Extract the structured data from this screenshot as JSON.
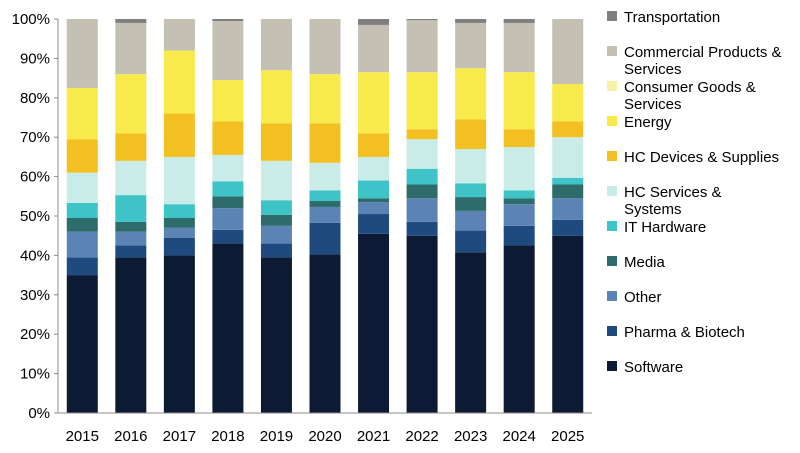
{
  "chart_data": {
    "type": "bar",
    "stacked": true,
    "normalized": true,
    "title": "",
    "xlabel": "",
    "ylabel": "",
    "ylim": [
      0,
      100
    ],
    "yticks": [
      "0%",
      "10%",
      "20%",
      "30%",
      "40%",
      "50%",
      "60%",
      "70%",
      "80%",
      "90%",
      "100%"
    ],
    "categories": [
      "2015",
      "2016",
      "2017",
      "2018",
      "2019",
      "2020",
      "2021",
      "2022",
      "2023",
      "2024",
      "2025"
    ],
    "series": [
      {
        "name": "Software",
        "color": "#0c1a33",
        "values": [
          35,
          39.5,
          40,
          43,
          39.5,
          40.3,
          45.5,
          45,
          40.8,
          42.5,
          45
        ]
      },
      {
        "name": "Pharma & Biotech",
        "color": "#1e4a80",
        "values": [
          4.5,
          3,
          4.5,
          3.5,
          3.5,
          8,
          5,
          3.5,
          5.5,
          5,
          4
        ]
      },
      {
        "name": "Other",
        "color": "#5b84b4",
        "values": [
          6.5,
          3.5,
          2.5,
          5.5,
          4.5,
          4,
          3,
          6,
          5,
          5.5,
          5.5
        ]
      },
      {
        "name": "Media",
        "color": "#2e6b6b",
        "values": [
          3.5,
          2.5,
          2.5,
          3,
          2.8,
          1.5,
          1,
          3.5,
          3.5,
          1.5,
          3.5
        ]
      },
      {
        "name": "IT Hardware",
        "color": "#3ec3c6",
        "values": [
          3.8,
          6.8,
          3.5,
          3.8,
          3.7,
          2.7,
          4.5,
          4,
          3.5,
          2,
          1.7
        ]
      },
      {
        "name": "HC Services & Systems",
        "color": "#c9ece9",
        "values": [
          7.7,
          8.7,
          12,
          6.7,
          10,
          7,
          6,
          7.5,
          8.7,
          11,
          10.3
        ]
      },
      {
        "name": "HC Devices & Supplies",
        "color": "#f3c021",
        "values": [
          8.5,
          7,
          11,
          8.5,
          9.5,
          10,
          6,
          2.5,
          7.5,
          4.5,
          4
        ]
      },
      {
        "name": "Energy",
        "color": "#f8ea4b",
        "values": [
          13,
          15,
          16,
          10.5,
          13.5,
          12.5,
          15.5,
          14.5,
          13,
          14.5,
          9.5
        ]
      },
      {
        "name": "Consumer Goods & Services",
        "color": "#f6f1a8",
        "values": [
          0,
          0,
          0,
          0,
          0,
          0,
          0,
          0,
          0,
          0,
          0
        ]
      },
      {
        "name": "Commercial Products & Services",
        "color": "#c4c0b4",
        "values": [
          17.5,
          13,
          8,
          15,
          13,
          14,
          12,
          13.2,
          11.5,
          12.5,
          16.5
        ]
      },
      {
        "name": "Transportation",
        "color": "#7f7f7f",
        "values": [
          0,
          1,
          0,
          0.5,
          0,
          0,
          1.5,
          0.3,
          1,
          1,
          0
        ]
      }
    ],
    "legend": {
      "position": "right",
      "order": [
        "Transportation",
        "Commercial Products & Services",
        "Consumer Goods & Services",
        "Energy",
        "HC Devices & Supplies",
        "HC Services & Systems",
        "IT Hardware",
        "Media",
        "Other",
        "Pharma & Biotech",
        "Software"
      ],
      "lines": {
        "Transportation": [
          "Transportation"
        ],
        "Commercial Products & Services": [
          "Commercial Products &",
          "Services"
        ],
        "Consumer Goods & Services": [
          "Consumer Goods &",
          "Services"
        ],
        "Energy": [
          "Energy"
        ],
        "HC Devices & Supplies": [
          "HC Devices & Supplies"
        ],
        "HC Services & Systems": [
          "HC Services &",
          "Systems"
        ],
        "IT Hardware": [
          "IT Hardware"
        ],
        "Media": [
          "Media"
        ],
        "Other": [
          "Other"
        ],
        "Pharma & Biotech": [
          "Pharma & Biotech"
        ],
        "Software": [
          "Software"
        ]
      }
    },
    "grid": false
  }
}
